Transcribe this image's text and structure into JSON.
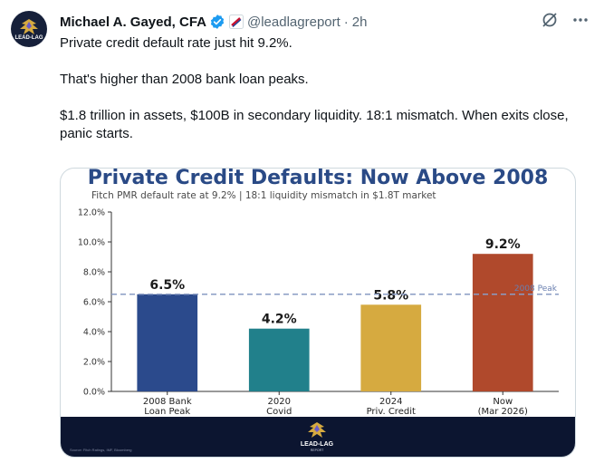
{
  "tweet": {
    "author_name": "Michael A. Gayed, CFA",
    "handle": "@leadlagreport",
    "dot": "·",
    "time": "2h",
    "paragraphs": [
      "Private credit default rate just hit 9.2%.",
      "That's higher than 2008 bank loan peaks.",
      "$1.8 trillion in assets, $100B in secondary liquidity. 18:1 mismatch. When exits close, panic starts."
    ],
    "icons": {
      "avatar": "lead-lag-logo",
      "verified": "verified-badge-icon",
      "affiliate": "affiliate-flag-icon",
      "grok": "grok-icon",
      "more": "more-icon"
    },
    "colors": {
      "text": "#0f1419",
      "muted": "#536471",
      "verified": "#1d9bf0"
    }
  },
  "chart_data": {
    "type": "bar",
    "title": "Private Credit Defaults: Now Above 2008",
    "subtitle": "Fitch PMR default rate at 9.2% | 18:1 liquidity mismatch in $1.8T market",
    "categories": [
      [
        "2008 Bank",
        "Loan Peak"
      ],
      [
        "2020",
        "Covid"
      ],
      [
        "2024",
        "Priv. Credit"
      ],
      [
        "Now",
        "(Mar 2026)"
      ]
    ],
    "values": [
      6.5,
      4.2,
      5.8,
      9.2
    ],
    "value_labels": [
      "6.5%",
      "4.2%",
      "5.8%",
      "9.2%"
    ],
    "bar_colors": [
      "#2b4a8c",
      "#21808b",
      "#d6aa40",
      "#b0492c"
    ],
    "ylim": [
      0,
      12
    ],
    "yticks": [
      0,
      2,
      4,
      6,
      8,
      10,
      12
    ],
    "ytick_labels": [
      "0.0%",
      "2.0%",
      "4.0%",
      "6.0%",
      "8.0%",
      "10.0%",
      "12.0%"
    ],
    "reference_line": {
      "value": 6.5,
      "label": "2008 Peak",
      "color": "#8a9cc4"
    },
    "grid": false,
    "footer_source": "Source: Fitch Ratings, IMF, Bloomberg",
    "footer_brand": "LEAD-LAG",
    "footer_brand_sub": "REPORT"
  }
}
